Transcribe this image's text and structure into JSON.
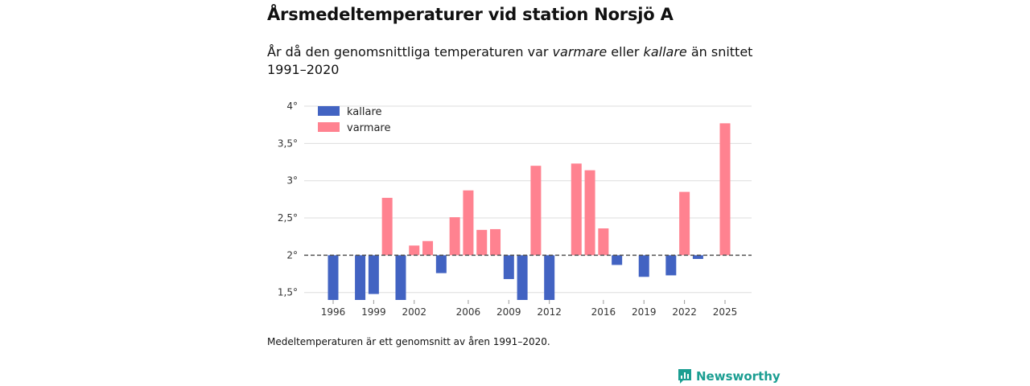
{
  "title": "Årsmedeltemperaturer vid station Norsjö A",
  "subtitle": {
    "part1": "År då den genomsnittliga temperaturen var ",
    "warm_word": "varmare",
    "part2": " eller ",
    "cold_word": "kallare",
    "part3": " än snittet 1991–2020"
  },
  "footnote": "Medeltemperaturen är ett genomsnitt av åren 1991–2020.",
  "brand": {
    "name": "Newsworthy",
    "icon": "newsworthy-logo-icon"
  },
  "colors": {
    "kallare": "#4263c2",
    "varmare": "#ff8290",
    "baseline": "#555555",
    "grid": "#dddddd",
    "brand": "#1b9e92"
  },
  "chart_data": {
    "type": "bar",
    "baseline": 2.0,
    "ylim": [
      1.4,
      4.0
    ],
    "yticks": [
      1.5,
      2,
      2.5,
      3,
      3.5,
      4
    ],
    "ytick_labels": [
      "1,5°",
      "2°",
      "2,5°",
      "3°",
      "3,5°",
      "4°"
    ],
    "xticks": [
      1996,
      1999,
      2002,
      2006,
      2009,
      2012,
      2016,
      2019,
      2022,
      2025
    ],
    "xlim": [
      1995,
      2026
    ],
    "legend": [
      {
        "key": "kallare",
        "label": "kallare"
      },
      {
        "key": "varmare",
        "label": "varmare"
      }
    ],
    "legend_position": "top-left",
    "series": [
      {
        "year": 1996,
        "value": 1.4,
        "category": "kallare"
      },
      {
        "year": 1998,
        "value": 1.4,
        "category": "kallare"
      },
      {
        "year": 1999,
        "value": 1.48,
        "category": "kallare"
      },
      {
        "year": 2000,
        "value": 2.77,
        "category": "varmare"
      },
      {
        "year": 2001,
        "value": 1.4,
        "category": "kallare"
      },
      {
        "year": 2002,
        "value": 2.13,
        "category": "varmare"
      },
      {
        "year": 2003,
        "value": 2.19,
        "category": "varmare"
      },
      {
        "year": 2004,
        "value": 1.76,
        "category": "kallare"
      },
      {
        "year": 2005,
        "value": 2.51,
        "category": "varmare"
      },
      {
        "year": 2006,
        "value": 2.87,
        "category": "varmare"
      },
      {
        "year": 2007,
        "value": 2.34,
        "category": "varmare"
      },
      {
        "year": 2008,
        "value": 2.35,
        "category": "varmare"
      },
      {
        "year": 2009,
        "value": 1.68,
        "category": "kallare"
      },
      {
        "year": 2010,
        "value": 1.4,
        "category": "kallare"
      },
      {
        "year": 2011,
        "value": 3.2,
        "category": "varmare"
      },
      {
        "year": 2012,
        "value": 1.4,
        "category": "kallare"
      },
      {
        "year": 2014,
        "value": 3.23,
        "category": "varmare"
      },
      {
        "year": 2015,
        "value": 3.14,
        "category": "varmare"
      },
      {
        "year": 2016,
        "value": 2.36,
        "category": "varmare"
      },
      {
        "year": 2017,
        "value": 1.87,
        "category": "kallare"
      },
      {
        "year": 2019,
        "value": 1.71,
        "category": "kallare"
      },
      {
        "year": 2021,
        "value": 1.73,
        "category": "kallare"
      },
      {
        "year": 2022,
        "value": 2.85,
        "category": "varmare"
      },
      {
        "year": 2023,
        "value": 1.95,
        "category": "kallare"
      },
      {
        "year": 2025,
        "value": 3.77,
        "category": "varmare"
      }
    ]
  }
}
